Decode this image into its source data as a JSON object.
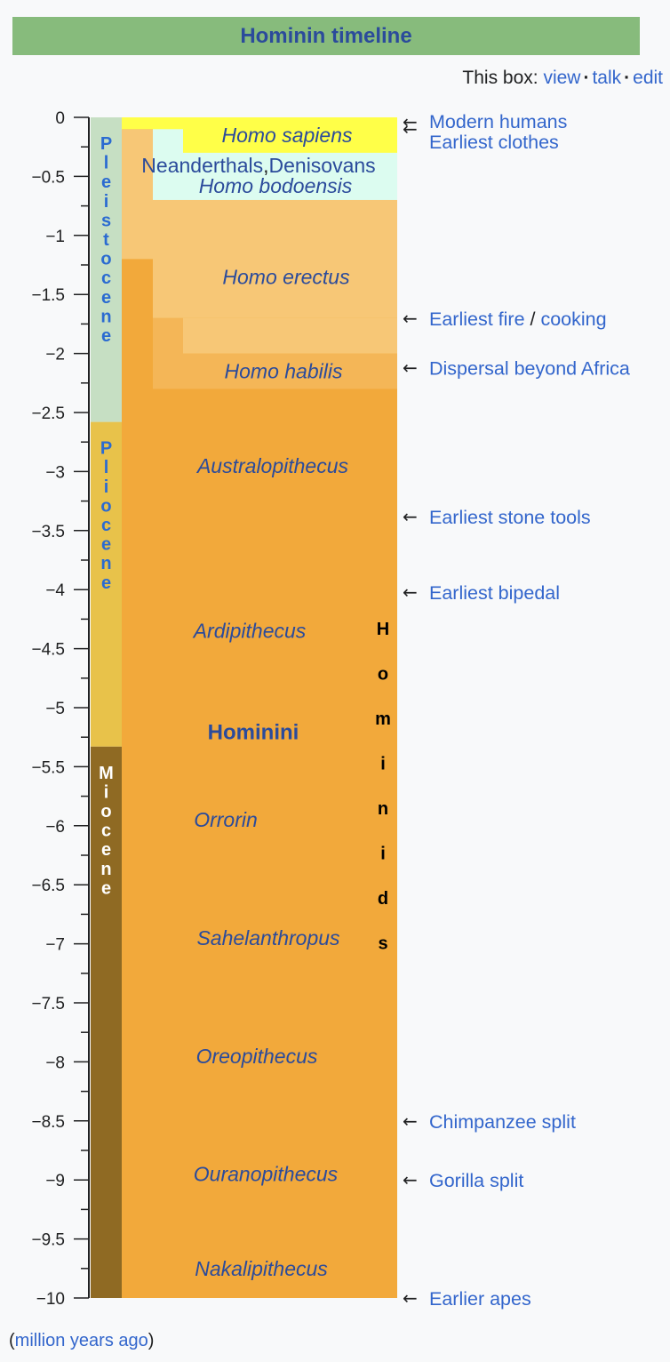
{
  "title": "Hominin timeline",
  "box_links": {
    "prefix": "This box:",
    "view": "view",
    "talk": "talk",
    "edit": "edit"
  },
  "footer": {
    "open": "(",
    "link": "million years ago",
    "close": ")"
  },
  "colors": {
    "title_bg": "#87bb7c",
    "pleistocene": "#c6dfc3",
    "pliocene": "#e8c24a",
    "miocene": "#8f6a23",
    "hominini": "#f2a93b",
    "homo_light": "#f7c776",
    "homo_mid": "#f4b657",
    "homo_sapiens": "#ffff48",
    "neanderthal": "#dcfcf0",
    "link": "#3366cc",
    "taxon_text": "#2b4b9b"
  },
  "chart_data": {
    "type": "timeline",
    "y_unit": "million years ago",
    "ylim": [
      -10,
      0
    ],
    "y_ticks": [
      "0",
      "−0.5",
      "−1",
      "−1.5",
      "−2",
      "−2.5",
      "−3",
      "−3.5",
      "−4",
      "−4.5",
      "−5",
      "−5.5",
      "−6",
      "−6.5",
      "−7",
      "−7.5",
      "−8",
      "−8.5",
      "−9",
      "−9.5",
      "−10"
    ],
    "epochs": [
      {
        "name": "Pleistocene",
        "letters": [
          "P",
          "l",
          "e",
          "i",
          "s",
          "t",
          "o",
          "c",
          "e",
          "n",
          "e"
        ],
        "from": 0,
        "to": -2.58,
        "color": "#c6dfc3",
        "text_color": "#2b6bd1"
      },
      {
        "name": "Pliocene",
        "letters": [
          "P",
          "l",
          "i",
          "o",
          "c",
          "e",
          "n",
          "e"
        ],
        "from": -2.58,
        "to": -5.33,
        "color": "#e8c24a",
        "text_color": "#2b6bd1"
      },
      {
        "name": "Miocene",
        "letters": [
          "M",
          "i",
          "o",
          "c",
          "e",
          "n",
          "e"
        ],
        "from": -5.33,
        "to": -10,
        "color": "#8f6a23",
        "text_color": "#ffffff"
      }
    ],
    "taxa": [
      {
        "name": "Homo sapiens",
        "y": -0.15
      },
      {
        "name": "Homo bodoensis",
        "y": -0.58
      },
      {
        "name": "Homo erectus",
        "y": -1.35
      },
      {
        "name": "Homo habilis",
        "y": -2.15
      },
      {
        "name": "Australopithecus",
        "y": -2.95
      },
      {
        "name": "Ardipithecus",
        "y": -4.35
      },
      {
        "name": "Orrorin",
        "y": -5.95
      },
      {
        "name": "Sahelanthropus",
        "y": -6.95
      },
      {
        "name": "Oreopithecus",
        "y": -7.95
      },
      {
        "name": "Ouranopithecus",
        "y": -8.95
      },
      {
        "name": "Nakalipithecus",
        "y": -9.75
      }
    ],
    "neanderthals": {
      "part1": "Neanderthals",
      "comma": ",",
      "part2": "Denisovans",
      "y": -0.4
    },
    "group_labels": {
      "hominini": {
        "text": "Hominini",
        "y": -5.2
      },
      "hominids": {
        "letters": [
          "H",
          "o",
          "m",
          "i",
          "n",
          "i",
          "d",
          "s"
        ]
      }
    },
    "events": [
      {
        "label": "Modern humans",
        "y": -0.05,
        "arrow": true
      },
      {
        "label": "Earliest clothes",
        "y": -0.17,
        "arrow": true
      },
      {
        "label": "Earliest fire",
        "sep": "/",
        "label2": "cooking",
        "y": -1.7,
        "arrow": true
      },
      {
        "label": "Dispersal beyond Africa",
        "y": -2.12,
        "arrow": true
      },
      {
        "label": "Earliest stone tools",
        "y": -3.38,
        "arrow": true
      },
      {
        "label": "Earliest bipedal",
        "y": -4.02,
        "arrow": true
      },
      {
        "label": "Chimpanzee split",
        "y": -8.5,
        "arrow": true
      },
      {
        "label": "Gorilla split",
        "y": -9.0,
        "arrow": true
      },
      {
        "label": "Earlier apes",
        "y": -10.0,
        "arrow": true
      }
    ],
    "regions": [
      {
        "name": "hominini",
        "x_start": 0,
        "x_end": 4,
        "from": 0,
        "to": -10,
        "color": "#f2a93b"
      },
      {
        "name": "homo-light",
        "x_start": 0,
        "x_end": 4,
        "from": -0.1,
        "to": -1.2,
        "color": "#f7c776"
      },
      {
        "name": "homo-light",
        "x_start": 1,
        "x_end": 4,
        "from": 0,
        "to": -1.7,
        "color": "#f7c776"
      },
      {
        "name": "homo-mid",
        "x_start": 1,
        "x_end": 2,
        "from": -1.7,
        "to": -2.3,
        "color": "#f4b657"
      },
      {
        "name": "homo-mid",
        "x_start": 2,
        "x_end": 4,
        "from": -2.0,
        "to": -2.3,
        "color": "#f4b657"
      },
      {
        "name": "homo-light",
        "x_start": 2,
        "x_end": 4,
        "from": -1.7,
        "to": -2.0,
        "color": "#f7c776"
      },
      {
        "name": "neanderthal",
        "x_start": 1,
        "x_end": 4,
        "from": 0,
        "to": -0.7,
        "color": "#dcfcf0"
      },
      {
        "name": "homo-sapiens",
        "x_start": 0,
        "x_end": 4,
        "from": 0,
        "to": -0.1,
        "color": "#ffff48"
      },
      {
        "name": "homo-sapiens",
        "x_start": 2,
        "x_end": 4,
        "from": 0,
        "to": -0.3,
        "color": "#ffff48"
      }
    ]
  }
}
